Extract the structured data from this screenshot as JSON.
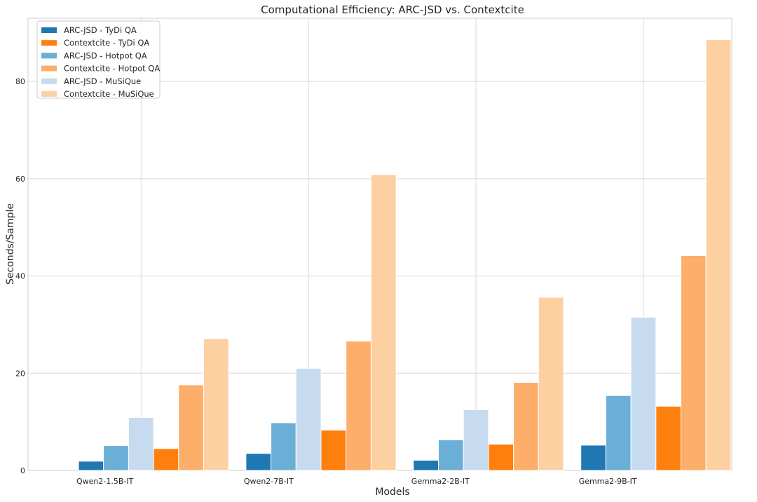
{
  "chart_data": {
    "type": "bar",
    "title": "Computational Efficiency: ARC-JSD vs. Contextcite",
    "xlabel": "Models",
    "ylabel": "Seconds/Sample",
    "ylim": [
      0,
      93
    ],
    "yticks": [
      0,
      20,
      40,
      60,
      80
    ],
    "categories": [
      "Qwen2-1.5B-IT",
      "Qwen2-7B-IT",
      "Gemma2-2B-IT",
      "Gemma2-9B-IT"
    ],
    "grid": true,
    "legend_position": "top-left",
    "series": [
      {
        "name": "ARC-JSD - TyDi QA",
        "color": "#1f77b4",
        "values": [
          1.9,
          3.5,
          2.1,
          5.2
        ]
      },
      {
        "name": "Contextcite - TyDi QA",
        "color": "#ff7f0e",
        "values": [
          4.5,
          8.3,
          5.4,
          13.2
        ]
      },
      {
        "name": "ARC-JSD - Hotpot QA",
        "color": "#6baed6",
        "values": [
          5.1,
          9.8,
          6.3,
          15.4
        ]
      },
      {
        "name": "Contextcite - Hotpot QA",
        "color": "#fdae6b",
        "values": [
          17.6,
          26.6,
          18.1,
          44.2
        ]
      },
      {
        "name": "ARC-JSD - MuSiQue",
        "color": "#c6dbef",
        "values": [
          10.9,
          21.0,
          12.5,
          31.5
        ]
      },
      {
        "name": "Contextcite - MuSiQue",
        "color": "#fdd0a2",
        "values": [
          27.1,
          60.8,
          35.6,
          88.6
        ]
      }
    ],
    "bar_order": [
      0,
      2,
      4,
      1,
      3,
      5
    ]
  }
}
